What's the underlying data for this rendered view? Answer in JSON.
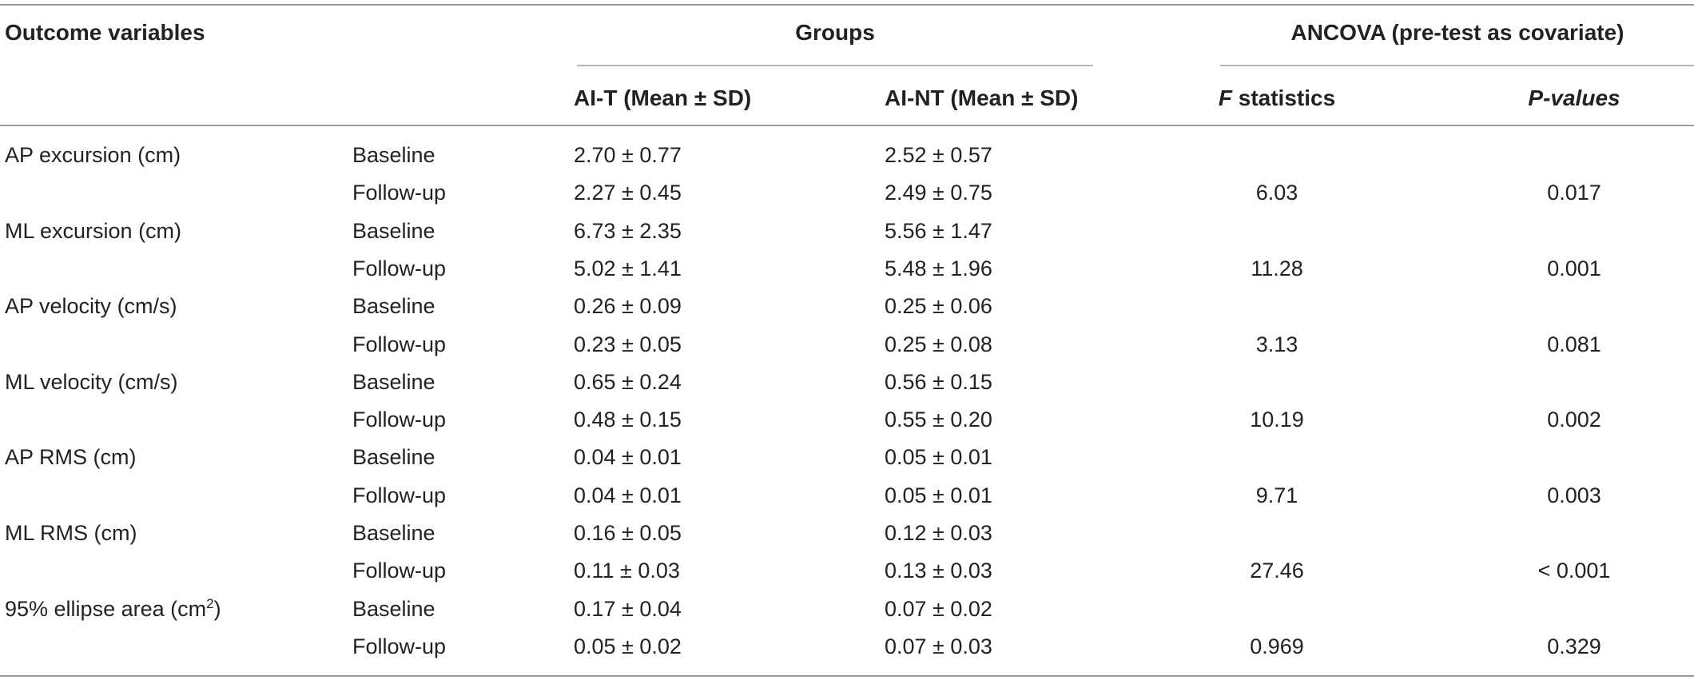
{
  "table": {
    "header": {
      "outcome_variables": "Outcome variables",
      "groups": "Groups",
      "ancova": "ANCOVA (pre-test as covariate)",
      "ait": "AI-T (Mean ± SD)",
      "aint": "AI-NT (Mean ± SD)",
      "f_letter": "F",
      "f_rest": " statistics",
      "p_values": "P-values"
    },
    "rows": [
      {
        "variable": "AP excursion (cm)",
        "baseline_label": "Baseline",
        "followup_label": "Follow-up",
        "ait_baseline": "2.70 ± 0.77",
        "aint_baseline": "2.52 ± 0.57",
        "ait_followup": "2.27 ± 0.45",
        "aint_followup": "2.49 ± 0.75",
        "f": "6.03",
        "p": "0.017"
      },
      {
        "variable": "ML excursion (cm)",
        "baseline_label": "Baseline",
        "followup_label": "Follow-up",
        "ait_baseline": "6.73 ± 2.35",
        "aint_baseline": "5.56 ± 1.47",
        "ait_followup": "5.02 ± 1.41",
        "aint_followup": "5.48 ± 1.96",
        "f": "11.28",
        "p": "0.001"
      },
      {
        "variable": "AP velocity (cm/s)",
        "baseline_label": "Baseline",
        "followup_label": "Follow-up",
        "ait_baseline": "0.26 ± 0.09",
        "aint_baseline": "0.25 ± 0.06",
        "ait_followup": "0.23 ± 0.05",
        "aint_followup": "0.25 ± 0.08",
        "f": "3.13",
        "p": "0.081"
      },
      {
        "variable": "ML velocity (cm/s)",
        "baseline_label": "Baseline",
        "followup_label": "Follow-up",
        "ait_baseline": "0.65 ± 0.24",
        "aint_baseline": "0.56 ± 0.15",
        "ait_followup": "0.48 ± 0.15",
        "aint_followup": "0.55 ± 0.20",
        "f": "10.19",
        "p": "0.002"
      },
      {
        "variable": "AP RMS (cm)",
        "baseline_label": "Baseline",
        "followup_label": "Follow-up",
        "ait_baseline": "0.04 ± 0.01",
        "aint_baseline": "0.05 ± 0.01",
        "ait_followup": "0.04 ± 0.01",
        "aint_followup": "0.05 ± 0.01",
        "f": "9.71",
        "p": "0.003"
      },
      {
        "variable": "ML RMS (cm)",
        "baseline_label": "Baseline",
        "followup_label": "Follow-up",
        "ait_baseline": "0.16 ± 0.05",
        "aint_baseline": "0.12 ± 0.03",
        "ait_followup": "0.11 ± 0.03",
        "aint_followup": "0.13 ± 0.03",
        "f": "27.46",
        "p": "< 0.001"
      },
      {
        "variable": "95% ellipse area (cm",
        "variable_sup": "2",
        "variable_suffix": ")",
        "baseline_label": "Baseline",
        "followup_label": "Follow-up",
        "ait_baseline": "0.17 ± 0.04",
        "aint_baseline": "0.07 ± 0.02",
        "ait_followup": "0.05 ± 0.02",
        "aint_followup": "0.07 ± 0.03",
        "f": "0.969",
        "p": "0.329"
      }
    ]
  }
}
